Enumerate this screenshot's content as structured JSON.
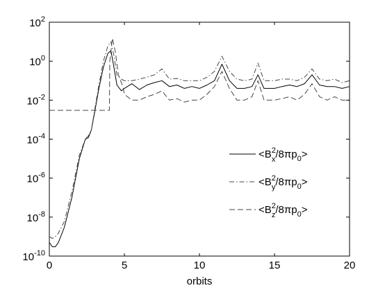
{
  "chart_data": {
    "type": "line",
    "title": "",
    "xlabel": "orbits",
    "ylabel": "",
    "xlim": [
      0,
      20
    ],
    "ylim": [
      1e-10,
      100
    ],
    "y_scale": "log",
    "x_ticks": [
      0,
      5,
      10,
      15,
      20
    ],
    "x_tick_labels": [
      "0",
      "5",
      "10",
      "15",
      "20"
    ],
    "y_ticks": [
      1e-10,
      1e-08,
      1e-06,
      0.0001,
      0.01,
      1,
      100
    ],
    "y_tick_labels": [
      {
        "base": "10",
        "exp": "-10"
      },
      {
        "base": "10",
        "exp": "-8"
      },
      {
        "base": "10",
        "exp": "-6"
      },
      {
        "base": "10",
        "exp": "-4"
      },
      {
        "base": "10",
        "exp": "-2"
      },
      {
        "base": "10",
        "exp": "0"
      },
      {
        "base": "10",
        "exp": "2"
      }
    ],
    "grid": false,
    "legend_position": "right-middle",
    "series": [
      {
        "name": "<B_x^2/8πp_0>",
        "legend": {
          "pre": "<B",
          "sup": "2",
          "sub": "x",
          "post": "/8πp",
          "sub2": "0",
          "end": ">"
        },
        "style": "solid",
        "x": [
          0,
          0.2,
          0.4,
          0.6,
          1.0,
          1.5,
          2.0,
          2.4,
          2.6,
          2.8,
          3.0,
          3.3,
          3.6,
          3.9,
          4.1,
          4.3,
          4.5,
          4.8,
          5.0,
          5.5,
          6.0,
          6.5,
          7.0,
          7.5,
          8.0,
          8.5,
          9.0,
          9.5,
          10.0,
          10.5,
          11.0,
          11.5,
          12.0,
          12.5,
          13.0,
          13.5,
          13.9,
          14.3,
          15.0,
          15.5,
          16.0,
          16.5,
          17.0,
          17.5,
          18.0,
          18.5,
          19.0,
          19.5,
          20.0
        ],
        "y": [
          5e-10,
          3e-10,
          3e-10,
          5e-10,
          3e-09,
          1e-07,
          1e-05,
          0.0001,
          0.00012,
          0.0003,
          0.002,
          0.04,
          0.5,
          2.5,
          3.5,
          0.5,
          0.06,
          0.03,
          0.04,
          0.07,
          0.035,
          0.06,
          0.08,
          0.1,
          0.05,
          0.06,
          0.04,
          0.05,
          0.04,
          0.06,
          0.1,
          0.7,
          0.1,
          0.04,
          0.04,
          0.05,
          0.2,
          0.04,
          0.04,
          0.05,
          0.06,
          0.05,
          0.07,
          0.2,
          0.06,
          0.05,
          0.05,
          0.04,
          0.05
        ]
      },
      {
        "name": "<B_y^2/8πp_0>",
        "legend": {
          "pre": "<B",
          "sup": "2",
          "sub": "y",
          "post": "/8πp",
          "sub2": "0",
          "end": ">"
        },
        "style": "dashdot",
        "x": [
          0,
          0.2,
          0.4,
          0.6,
          1.0,
          1.5,
          2.0,
          2.4,
          2.6,
          2.8,
          3.0,
          3.3,
          3.6,
          3.9,
          4.1,
          4.3,
          4.5,
          4.8,
          5.0,
          5.5,
          6.0,
          6.5,
          7.0,
          7.5,
          8.0,
          8.5,
          9.0,
          9.5,
          10.0,
          10.5,
          11.0,
          11.5,
          12.0,
          12.5,
          13.0,
          13.5,
          13.9,
          14.3,
          15.0,
          15.5,
          16.0,
          16.5,
          17.0,
          17.5,
          18.0,
          18.5,
          19.0,
          19.5,
          20.0
        ],
        "y": [
          1e-09,
          8e-10,
          1e-09,
          1.5e-09,
          6e-09,
          2e-07,
          1.5e-05,
          0.0001,
          0.00015,
          0.0003,
          0.0025,
          0.06,
          1.0,
          6.0,
          10,
          2.0,
          0.2,
          0.12,
          0.1,
          0.1,
          0.12,
          0.15,
          0.2,
          0.4,
          0.12,
          0.13,
          0.1,
          0.1,
          0.1,
          0.15,
          0.3,
          1.8,
          0.3,
          0.12,
          0.1,
          0.12,
          0.8,
          0.1,
          0.1,
          0.12,
          0.12,
          0.1,
          0.15,
          0.4,
          0.12,
          0.1,
          0.12,
          0.08,
          0.1
        ]
      },
      {
        "name": "<B_z^2/8πp_0>",
        "legend": {
          "pre": "<B",
          "sup": "2",
          "sub": "z",
          "post": "/8πp",
          "sub2": "0",
          "end": ">"
        },
        "style": "dashed",
        "x": [
          0,
          2.0,
          4.0,
          4.03,
          4.2,
          4.4,
          4.6,
          4.9,
          5.0,
          5.5,
          6.0,
          6.5,
          7.0,
          7.5,
          8.0,
          8.5,
          9.0,
          9.5,
          10.0,
          10.5,
          11.0,
          11.5,
          12.0,
          12.5,
          13.0,
          13.5,
          13.9,
          14.3,
          15.0,
          15.5,
          16.0,
          16.5,
          17.0,
          17.5,
          18.0,
          18.5,
          19.0,
          19.5,
          20.0
        ],
        "y": [
          0.003,
          0.003,
          0.003,
          1.0,
          15,
          3.0,
          0.2,
          0.05,
          0.02,
          0.01,
          0.01,
          0.015,
          0.02,
          0.03,
          0.01,
          0.012,
          0.008,
          0.01,
          0.01,
          0.02,
          0.05,
          0.3,
          0.04,
          0.01,
          0.01,
          0.015,
          0.1,
          0.01,
          0.01,
          0.012,
          0.015,
          0.01,
          0.02,
          0.07,
          0.015,
          0.01,
          0.015,
          0.01,
          0.01
        ]
      }
    ]
  }
}
